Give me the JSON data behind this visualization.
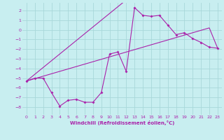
{
  "xlabel": "Windchill (Refroidissement éolien,°C)",
  "background_color": "#c8eef0",
  "grid_color": "#a8d8da",
  "line_color": "#aa22aa",
  "x_values": [
    0,
    1,
    2,
    3,
    4,
    5,
    6,
    7,
    8,
    9,
    10,
    11,
    12,
    13,
    14,
    15,
    16,
    17,
    18,
    19,
    20,
    21,
    22,
    23
  ],
  "y_main": [
    -5.3,
    -5.0,
    -5.0,
    -6.5,
    -7.9,
    -7.3,
    -7.2,
    -7.5,
    -7.5,
    -6.5,
    -2.5,
    -2.3,
    -4.3,
    2.3,
    1.5,
    1.4,
    1.5,
    0.5,
    -0.5,
    -0.3,
    -0.9,
    -1.3,
    -1.8,
    -1.9
  ],
  "y_line1": [
    -5.3,
    -5.05,
    -4.8,
    -4.55,
    -4.3,
    -4.05,
    -3.8,
    -3.55,
    -3.3,
    -3.05,
    -2.8,
    -2.55,
    -2.3,
    -2.05,
    -1.8,
    -1.55,
    -1.3,
    -1.05,
    -0.8,
    -0.55,
    -0.3,
    -0.05,
    0.2,
    -1.9
  ],
  "y_line2": [
    -5.3,
    -4.6,
    -3.9,
    -3.2,
    -2.5,
    -1.8,
    -1.1,
    -0.4,
    0.3,
    1.0,
    1.7,
    2.4,
    3.1,
    3.8,
    4.5,
    5.2,
    5.9,
    6.6,
    7.3,
    8.0,
    8.7,
    9.4,
    10.1,
    10.8
  ],
  "xlim_min": -0.5,
  "xlim_max": 23.5,
  "ylim_min": -8.8,
  "ylim_max": 2.8,
  "yticks": [
    -8,
    -7,
    -6,
    -5,
    -4,
    -3,
    -2,
    -1,
    0,
    1,
    2
  ],
  "xticks": [
    0,
    1,
    2,
    3,
    4,
    5,
    6,
    7,
    8,
    9,
    10,
    11,
    12,
    13,
    14,
    15,
    16,
    17,
    18,
    19,
    20,
    21,
    22,
    23
  ]
}
